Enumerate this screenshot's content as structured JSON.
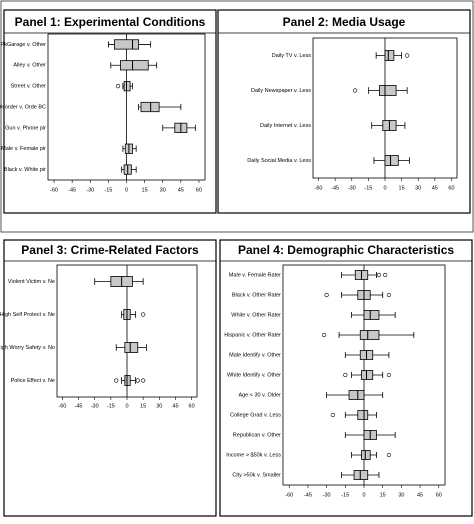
{
  "chart_data": [
    {
      "type": "box",
      "title": "Panel 1:  Experimental Conditions",
      "categories": [
        "PkGarage v. Other",
        "Alley v. Other",
        "Street v. Other",
        "Disorder v. Orde BC",
        "Gun v. Phone pir",
        "Male v. Female pir",
        "Black v. White pir"
      ],
      "low": [
        -15,
        -13,
        -3,
        10,
        30,
        -3,
        -4
      ],
      "q1": [
        -10,
        -5,
        -2,
        12,
        40,
        -1,
        -2
      ],
      "median": [
        5,
        5,
        0,
        20,
        45,
        2,
        1
      ],
      "q3": [
        10,
        18,
        3,
        27,
        50,
        5,
        4
      ],
      "high": [
        20,
        25,
        5,
        45,
        57,
        8,
        8
      ],
      "outliers": [
        [],
        [],
        [
          -7
        ],
        [],
        [],
        [],
        []
      ],
      "xlim": [
        -65,
        65
      ],
      "xticks": [
        -60,
        -45,
        -30,
        -15,
        0,
        15,
        30,
        45,
        60
      ],
      "refline": 0,
      "color": "#c8c8c8"
    },
    {
      "type": "box",
      "title": "Panel 2:  Media Usage",
      "categories": [
        "Daily TV v. Less",
        "Daily Newspaper v. Less",
        "Daily Internet v. Less",
        "Daily Social Media v. Less"
      ],
      "low": [
        -8,
        -15,
        -12,
        -10
      ],
      "q1": [
        0,
        -5,
        -2,
        0
      ],
      "median": [
        3,
        0,
        4,
        5
      ],
      "q3": [
        8,
        10,
        10,
        12
      ],
      "high": [
        15,
        20,
        18,
        22
      ],
      "outliers": [
        [
          20
        ],
        [
          -27
        ],
        [],
        []
      ],
      "xlim": [
        -65,
        65
      ],
      "xticks": [
        -60,
        -45,
        -30,
        -15,
        0,
        15,
        30,
        45,
        60
      ],
      "refline": 0,
      "color": "#c8c8c8"
    },
    {
      "type": "box",
      "title": "Panel 3:  Crime-Related Factors",
      "categories": [
        "Violent Victim v. Ne",
        "High Self Protect v. Ne",
        "High Worry Safety v. No",
        "Police Effect v. Ne"
      ],
      "low": [
        -30,
        -5,
        -10,
        -5
      ],
      "q1": [
        -15,
        -3,
        -2,
        -2
      ],
      "median": [
        -5,
        0,
        3,
        0
      ],
      "q3": [
        5,
        3,
        10,
        3
      ],
      "high": [
        15,
        8,
        18,
        8
      ],
      "outliers": [
        [],
        [
          15
        ],
        [],
        [
          -10,
          10,
          15
        ]
      ],
      "xlim": [
        -65,
        65
      ],
      "xticks": [
        -60,
        -45,
        -30,
        -15,
        0,
        15,
        30,
        45,
        60
      ],
      "refline": 0,
      "color": "#c8c8c8"
    },
    {
      "type": "box",
      "title": "Panel 4:  Demographic Characteristics",
      "categories": [
        "Male v. Female Rater",
        "Black v. Other Rater",
        "White v. Other Rater",
        "Hispanic v. Other Rater",
        "Male Identify v. Other",
        "White Identify v. Other",
        "Age < 30 v. Older",
        "College Grad v. Less",
        "Republican v. Other",
        "Income > $50k v. Less",
        "City >50k v. Smaller"
      ],
      "low": [
        -18,
        -18,
        -10,
        -20,
        -15,
        -10,
        -30,
        -15,
        -15,
        -10,
        -18
      ],
      "q1": [
        -7,
        -5,
        0,
        -3,
        -3,
        -2,
        -12,
        -5,
        0,
        -2,
        -8
      ],
      "median": [
        -2,
        0,
        5,
        3,
        2,
        2,
        -5,
        0,
        5,
        1,
        -3
      ],
      "q3": [
        3,
        5,
        12,
        12,
        7,
        7,
        0,
        3,
        10,
        5,
        3
      ],
      "high": [
        10,
        15,
        25,
        40,
        20,
        15,
        15,
        10,
        25,
        10,
        12
      ],
      "outliers": [
        [
          12,
          17
        ],
        [
          -30,
          20
        ],
        [],
        [
          -32
        ],
        [],
        [
          -15,
          20
        ],
        [],
        [
          -25
        ],
        [],
        [
          20
        ],
        []
      ],
      "xlim": [
        -65,
        65
      ],
      "xticks": [
        -60,
        -45,
        -30,
        -15,
        0,
        15,
        30,
        45,
        60
      ],
      "refline": 0,
      "color": "#c8c8c8"
    }
  ]
}
